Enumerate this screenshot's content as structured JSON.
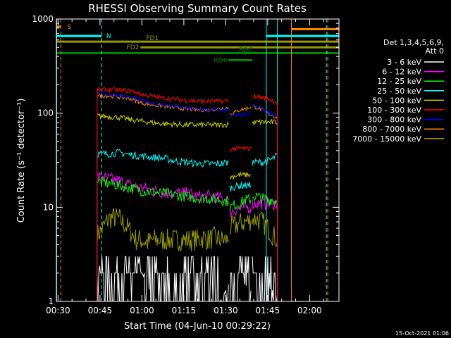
{
  "chart_data": {
    "type": "line",
    "title": "RHESSI Observing Summary Count Rates",
    "xlabel": "Start Time (04-Jun-10 00:29:22)",
    "ylabel": "Count Rate (s⁻¹ detector⁻¹)",
    "y_scale": "log",
    "ylim": [
      1,
      1000
    ],
    "xlim": [
      29.4,
      130.5
    ],
    "x_unit": "minutes after 00:00 on 04-Jun-10",
    "x_ticks": [
      {
        "value": 30,
        "label": "00:30"
      },
      {
        "value": 45,
        "label": "00:45"
      },
      {
        "value": 60,
        "label": "01:00"
      },
      {
        "value": 75,
        "label": "01:15"
      },
      {
        "value": 90,
        "label": "01:30"
      },
      {
        "value": 105,
        "label": "01:45"
      },
      {
        "value": 120,
        "label": "02:00"
      }
    ],
    "y_ticks": [
      {
        "value": 1,
        "label": "1"
      },
      {
        "value": 10,
        "label": "10"
      },
      {
        "value": 100,
        "label": "100"
      },
      {
        "value": 1000,
        "label": "1000"
      }
    ],
    "legend": {
      "position": "right",
      "header": [
        "Det 1,3,4,5,6,9,",
        "Att 0"
      ]
    },
    "series": [
      {
        "name": "3 - 6 keV",
        "color": "#ffffff",
        "segments": [
          {
            "x": [
              44,
              46,
              48,
              50,
              52,
              54,
              56,
              58,
              60,
              62,
              64,
              66,
              68,
              70,
              72,
              74,
              76,
              78,
              80,
              82,
              84,
              86,
              88,
              90,
              91
            ],
            "y": [
              2,
              3,
              3,
              3,
              3,
              2,
              2,
              3,
              2,
              1.5,
              1,
              1,
              1,
              1,
              1,
              1,
              1,
              1,
              1,
              1,
              1,
              1,
              1,
              1.3,
              1.5
            ]
          },
          {
            "x": [
              91.5,
              93,
              95,
              97,
              99
            ],
            "y": [
              1.5,
              1.7,
              1.6,
              1.5,
              1.3
            ]
          },
          {
            "x": [
              99.5,
              101,
              103,
              105,
              107,
              108.5
            ],
            "y": [
              1.5,
              1.6,
              1.5,
              1.4,
              1.3,
              1.2
            ]
          }
        ]
      },
      {
        "name": "6 - 12 keV",
        "color": "#ff00ff",
        "segments": [
          {
            "x": [
              44,
              48,
              52,
              56,
              60,
              64,
              68,
              72,
              76,
              80,
              84,
              88,
              91
            ],
            "y": [
              21,
              20,
              19,
              17,
              16,
              15,
              14.5,
              14,
              14,
              13,
              13,
              12.5,
              12
            ]
          },
          {
            "x": [
              91.5,
              93,
              95,
              97,
              99
            ],
            "y": [
              9,
              9.3,
              9.6,
              10,
              10
            ]
          },
          {
            "x": [
              99.5,
              101,
              103,
              105,
              107,
              108.5
            ],
            "y": [
              11,
              11,
              11,
              11,
              11,
              11
            ]
          }
        ]
      },
      {
        "name": "12 - 25 keV",
        "color": "#00ff00",
        "segments": [
          {
            "x": [
              44,
              48,
              52,
              56,
              60,
              64,
              68,
              72,
              76,
              80,
              84,
              88,
              91
            ],
            "y": [
              19,
              18,
              17,
              16,
              15,
              14.5,
              14,
              13.5,
              13,
              12.5,
              12.5,
              12,
              11.5
            ]
          },
          {
            "x": [
              91.5,
              93,
              95,
              97,
              99
            ],
            "y": [
              10,
              10.5,
              11,
              12,
              12
            ]
          },
          {
            "x": [
              99.5,
              101,
              103,
              105,
              107,
              108.5
            ],
            "y": [
              13,
              13,
              12.5,
              12,
              12,
              11.5
            ]
          }
        ]
      },
      {
        "name": "25 - 50 keV",
        "color": "#00ffff",
        "segments": [
          {
            "x": [
              44,
              48,
              52,
              56,
              60,
              64,
              68,
              72,
              76,
              80,
              84,
              88,
              91
            ],
            "y": [
              37,
              37,
              38,
              36,
              35,
              34,
              33,
              31,
              30,
              29,
              29,
              29,
              30
            ]
          },
          {
            "x": [
              91.5,
              93,
              95,
              97,
              99
            ],
            "y": [
              16,
              16.5,
              17,
              17,
              17
            ]
          },
          {
            "x": [
              99.5,
              101,
              103,
              105,
              107,
              108.5
            ],
            "y": [
              30,
              30,
              30,
              31,
              33,
              36
            ]
          }
        ]
      },
      {
        "name": "50 - 100 keV",
        "color": "#cccc00",
        "segments": [
          {
            "x": [
              44,
              48,
              52,
              56,
              60,
              64,
              68,
              72,
              76,
              80,
              84,
              88,
              91
            ],
            "y": [
              93,
              92,
              90,
              85,
              82,
              79,
              77,
              76,
              75,
              75,
              75,
              75,
              76
            ]
          },
          {
            "x": [
              91.5,
              93,
              95,
              97,
              99
            ],
            "y": [
              21,
              21.5,
              22,
              22,
              22
            ]
          },
          {
            "x": [
              99.5,
              101,
              103,
              105,
              107,
              108.5
            ],
            "y": [
              78,
              80,
              80,
              80,
              80,
              80
            ]
          }
        ]
      },
      {
        "name": "100 - 300 keV",
        "color": "#ff0000",
        "segments": [
          {
            "x": [
              44,
              48,
              52,
              56,
              58,
              60,
              64,
              68,
              72,
              76,
              80,
              84,
              88,
              91
            ],
            "y": [
              178,
              178,
              176,
              172,
              166,
              158,
              150,
              145,
              140,
              137,
              134,
              133,
              134,
              136
            ]
          },
          {
            "x": [
              91.5,
              93,
              95,
              97,
              99
            ],
            "y": [
              41,
              42,
              42,
              42,
              42
            ]
          },
          {
            "x": [
              99.5,
              101,
              103,
              105,
              107,
              108.5
            ],
            "y": [
              150,
              150,
              147,
              142,
              135,
              128
            ]
          }
        ]
      },
      {
        "name": "300 - 800 keV",
        "color": "#0000ff",
        "segments": [
          {
            "x": [
              44,
              48,
              52,
              56,
              58,
              60,
              64,
              68,
              72,
              76,
              80,
              84,
              88,
              91
            ],
            "y": [
              165,
              160,
              155,
              148,
              142,
              135,
              128,
              122,
              118,
              113,
              110,
              108,
              107,
              110
            ]
          },
          {
            "x": [
              91.5,
              93,
              95,
              97,
              99
            ],
            "y": [
              93,
              94,
              95,
              96,
              97
            ]
          },
          {
            "x": [
              99.5,
              101,
              103,
              105,
              107,
              108.5
            ],
            "y": [
              120,
              118,
              112,
              104,
              97,
              92
            ]
          }
        ]
      },
      {
        "name": "800 - 7000 keV",
        "color": "#ff8800",
        "segments": [
          {
            "x": [
              44,
              48,
              52,
              56,
              58,
              60,
              64,
              68,
              72,
              76,
              80,
              84,
              88,
              91
            ],
            "y": [
              155,
              152,
              148,
              142,
              135,
              128,
              122,
              118,
              114,
              110,
              108,
              108,
              112,
              115
            ]
          },
          {
            "x": [
              91.5,
              93,
              95,
              97,
              99
            ],
            "y": [
              98,
              102,
              108,
              112,
              116
            ]
          },
          {
            "x": [
              99.5,
              101,
              103,
              105,
              107,
              108.5
            ],
            "y": [
              118,
              115,
              108,
              100,
              94,
              88
            ]
          }
        ]
      },
      {
        "name": "7000 - 15000 keV",
        "color": "#999900",
        "segments": [
          {
            "x": [
              44,
              46,
              48,
              50,
              52,
              54,
              56,
              58,
              60,
              62,
              64,
              66,
              68,
              70,
              72,
              74,
              76,
              78,
              80,
              82,
              84,
              86,
              88,
              91
            ],
            "y": [
              5,
              6,
              7.5,
              7.8,
              7.5,
              6.5,
              5.5,
              4.5,
              4.5,
              4.2,
              4.5,
              4.5,
              4.5,
              4.5,
              4.5,
              4.5,
              4.5,
              4.5,
              4.5,
              4.8,
              4.5,
              4.8,
              4.5,
              4.5
            ]
          },
          {
            "x": [
              91.5,
              93,
              95,
              97,
              99
            ],
            "y": [
              6,
              6.3,
              6.7,
              7,
              7.3
            ]
          },
          {
            "x": [
              99.5,
              101,
              103,
              105,
              107,
              108.5
            ],
            "y": [
              7.5,
              7.5,
              7,
              6,
              5,
              4.5
            ]
          }
        ]
      }
    ],
    "flag_bars": [
      {
        "label": "S",
        "color": "#ff8800",
        "start": 29.5,
        "end": 31,
        "level": 830
      },
      {
        "label": "N",
        "color": "#00ffff",
        "start": 29.5,
        "end": 45.6,
        "level": 660
      },
      {
        "label": "FD1",
        "color": "#999900",
        "start": 29.5,
        "end": 130.5,
        "level": 575
      },
      {
        "label": "FD2",
        "color": "#999900",
        "start": 59.5,
        "end": 130.5,
        "level": 500
      },
      {
        "label": "RDC",
        "color": "#008800",
        "start": 29.5,
        "end": 130.5,
        "level": 435
      },
      {
        "label": "RD6",
        "color": "#008800",
        "start": 91,
        "end": 99.5,
        "level": 365
      },
      {
        "label": "",
        "color": "#00ffff",
        "start": 104.5,
        "end": 130.5,
        "level": 660
      },
      {
        "label": "",
        "color": "#ff8800",
        "start": 113.5,
        "end": 130.5,
        "level": 780
      }
    ],
    "vertical_markers": [
      {
        "x": 29.5,
        "color": "#00ffff",
        "style": "solid"
      },
      {
        "x": 31,
        "color": "#ff8800",
        "style": "dashed"
      },
      {
        "x": 45.6,
        "color": "#00ffff",
        "style": "dashed"
      },
      {
        "x": 104.5,
        "color": "#00ffff",
        "style": "solid"
      },
      {
        "x": 108.5,
        "color": "#00ffff",
        "style": "solid"
      },
      {
        "x": 113.5,
        "color": "#ff8800",
        "style": "solid"
      },
      {
        "x": 126,
        "color": "#00ffff",
        "style": "dashed"
      },
      {
        "x": 126.5,
        "color": "#ff8800",
        "style": "dashed"
      }
    ]
  },
  "footer": {
    "timestamp": "15-Oct-2021 01:06"
  }
}
